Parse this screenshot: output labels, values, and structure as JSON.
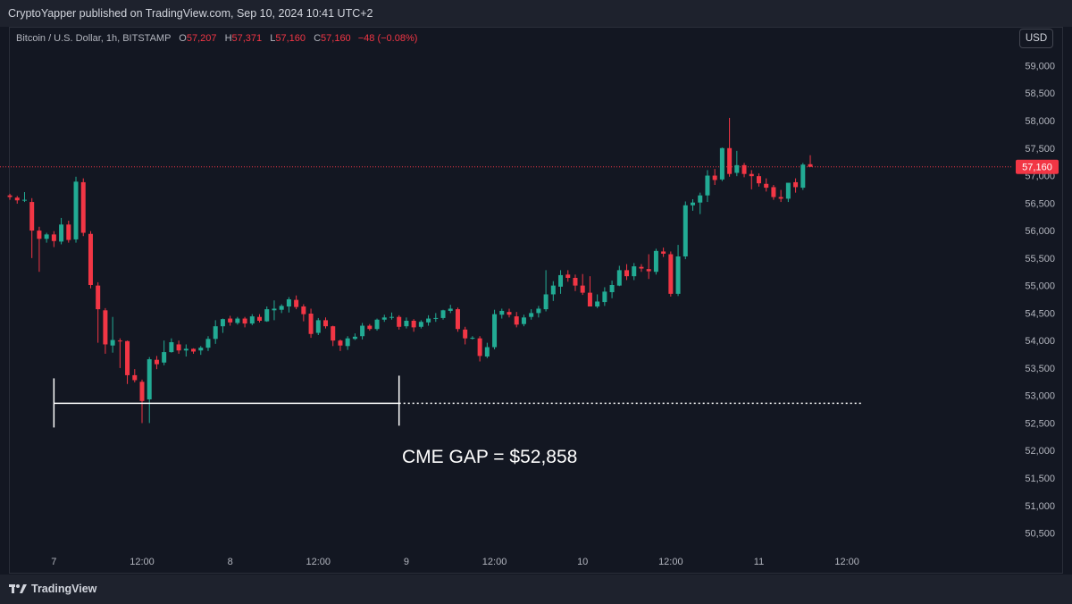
{
  "header": {
    "publisher_line": "CryptoYapper published on TradingView.com, Sep 10, 2024 10:41 UTC+2"
  },
  "legend": {
    "symbol": "Bitcoin / U.S. Dollar, 1h, BITSTAMP",
    "open_label": "O",
    "open_value": "57,207",
    "high_label": "H",
    "high_value": "57,371",
    "low_label": "L",
    "low_value": "57,160",
    "close_label": "C",
    "close_value": "57,160",
    "change": "−48 (−0.08%)"
  },
  "currency_button": "USD",
  "annotation_text": "CME GAP = $52,858",
  "footer": {
    "brand": "TradingView"
  },
  "colors": {
    "up": "#22ab94",
    "down": "#f23645",
    "background": "#131722",
    "price_line": "#f23645"
  },
  "chart_data": {
    "type": "candlestick",
    "ylim": [
      50200,
      59300
    ],
    "y_ticks": [
      "59,000",
      "58,500",
      "58,000",
      "57,500",
      "57,000",
      "56,500",
      "56,000",
      "55,500",
      "55,000",
      "54,500",
      "54,000",
      "53,500",
      "53,000",
      "52,500",
      "52,000",
      "51,500",
      "51,000",
      "50,500"
    ],
    "y_tick_values": [
      59000,
      58500,
      58000,
      57500,
      57000,
      56500,
      56000,
      55500,
      55000,
      54500,
      54000,
      53500,
      53000,
      52500,
      52000,
      51500,
      51000,
      50500
    ],
    "x_ticks": [
      "12:00",
      "7",
      "12:00",
      "8",
      "12:00",
      "9",
      "12:00",
      "10",
      "12:00",
      "11",
      "12:00"
    ],
    "x_tick_hours": [
      -24,
      -12,
      0,
      12,
      24,
      36,
      48,
      60,
      72,
      84,
      96
    ],
    "current_price": {
      "label": "57,160",
      "value": 57160
    },
    "cme_gap": {
      "value": 52858,
      "start_hour": -12,
      "end_hour": 35
    },
    "candles": [
      [
        56640,
        56670,
        56560,
        56610
      ],
      [
        56600,
        56630,
        56490,
        56550
      ],
      [
        56560,
        56700,
        56520,
        56560
      ],
      [
        56520,
        56590,
        55500,
        56000
      ],
      [
        56000,
        56070,
        55250,
        55850
      ],
      [
        55850,
        55960,
        55780,
        55930
      ],
      [
        55930,
        55990,
        55700,
        55810
      ],
      [
        55800,
        56230,
        55750,
        56110
      ],
      [
        56110,
        56180,
        55780,
        55830
      ],
      [
        55840,
        56980,
        55780,
        56890
      ],
      [
        56880,
        56950,
        55900,
        55960
      ],
      [
        55940,
        55990,
        54950,
        55010
      ],
      [
        55000,
        55060,
        53960,
        54570
      ],
      [
        54550,
        54590,
        53760,
        53930
      ],
      [
        53910,
        54430,
        53780,
        54010
      ],
      [
        54000,
        54040,
        53500,
        53990
      ],
      [
        53990,
        54000,
        53210,
        53370
      ],
      [
        53370,
        53480,
        53240,
        53280
      ],
      [
        53250,
        53290,
        52500,
        52900
      ],
      [
        52930,
        53700,
        52500,
        53660
      ],
      [
        53650,
        53720,
        53480,
        53570
      ],
      [
        53600,
        54000,
        53550,
        53790
      ],
      [
        53790,
        54040,
        53780,
        53970
      ],
      [
        53930,
        54000,
        53760,
        53820
      ],
      [
        53820,
        53930,
        53710,
        53850
      ],
      [
        53850,
        53860,
        53760,
        53800
      ],
      [
        53820,
        53900,
        53740,
        53870
      ],
      [
        53870,
        54080,
        53810,
        54030
      ],
      [
        54030,
        54370,
        53940,
        54260
      ],
      [
        54260,
        54400,
        54140,
        54390
      ],
      [
        54400,
        54450,
        54270,
        54330
      ],
      [
        54320,
        54430,
        54290,
        54400
      ],
      [
        54400,
        54430,
        54240,
        54310
      ],
      [
        54310,
        54480,
        54280,
        54440
      ],
      [
        54430,
        54480,
        54330,
        54360
      ],
      [
        54350,
        54620,
        54340,
        54570
      ],
      [
        54550,
        54730,
        54370,
        54580
      ],
      [
        54560,
        54660,
        54500,
        54630
      ],
      [
        54620,
        54790,
        54510,
        54750
      ],
      [
        54740,
        54820,
        54570,
        54610
      ],
      [
        54620,
        54660,
        54350,
        54480
      ],
      [
        54490,
        54580,
        54050,
        54120
      ],
      [
        54140,
        54410,
        54100,
        54370
      ],
      [
        54370,
        54420,
        54220,
        54260
      ],
      [
        54260,
        54270,
        53900,
        54000
      ],
      [
        54000,
        54020,
        53810,
        53910
      ],
      [
        53900,
        54080,
        53830,
        54040
      ],
      [
        54030,
        54130,
        54010,
        54070
      ],
      [
        54080,
        54320,
        54020,
        54270
      ],
      [
        54270,
        54300,
        54180,
        54210
      ],
      [
        54210,
        54400,
        54180,
        54380
      ],
      [
        54380,
        54470,
        54340,
        54420
      ],
      [
        54420,
        54510,
        54380,
        54430
      ],
      [
        54430,
        54460,
        54200,
        54250
      ],
      [
        54260,
        54420,
        54220,
        54360
      ],
      [
        54360,
        54390,
        54160,
        54240
      ],
      [
        54250,
        54370,
        54220,
        54340
      ],
      [
        54330,
        54460,
        54270,
        54400
      ],
      [
        54400,
        54500,
        54340,
        54410
      ],
      [
        54410,
        54560,
        54380,
        54550
      ],
      [
        54540,
        54650,
        54500,
        54580
      ],
      [
        54570,
        54600,
        54160,
        54210
      ],
      [
        54200,
        54250,
        53930,
        54040
      ],
      [
        54040,
        54080,
        54020,
        54050
      ],
      [
        54040,
        54080,
        53620,
        53720
      ],
      [
        53710,
        53960,
        53680,
        53880
      ],
      [
        53880,
        54560,
        53840,
        54480
      ],
      [
        54470,
        54580,
        54400,
        54540
      ],
      [
        54520,
        54580,
        54420,
        54470
      ],
      [
        54440,
        54520,
        54240,
        54290
      ],
      [
        54300,
        54470,
        54260,
        54420
      ],
      [
        54430,
        54570,
        54380,
        54500
      ],
      [
        54500,
        54630,
        54420,
        54580
      ],
      [
        54570,
        55280,
        54530,
        54840
      ],
      [
        54840,
        55080,
        54720,
        55000
      ],
      [
        54980,
        55280,
        54850,
        55190
      ],
      [
        55200,
        55280,
        55070,
        55140
      ],
      [
        55140,
        55200,
        54900,
        55000
      ],
      [
        55000,
        55210,
        54830,
        54870
      ],
      [
        54870,
        55170,
        54670,
        54620
      ],
      [
        54620,
        54840,
        54590,
        54710
      ],
      [
        54700,
        54970,
        54630,
        54890
      ],
      [
        54880,
        55090,
        54770,
        55010
      ],
      [
        55000,
        55360,
        54990,
        55280
      ],
      [
        55280,
        55390,
        55100,
        55170
      ],
      [
        55170,
        55410,
        55100,
        55350
      ],
      [
        55340,
        55390,
        55250,
        55310
      ],
      [
        55300,
        55570,
        55120,
        55260
      ],
      [
        55250,
        55670,
        55200,
        55630
      ],
      [
        55620,
        55690,
        55520,
        55580
      ],
      [
        55570,
        55620,
        54800,
        54850
      ],
      [
        54850,
        55740,
        54810,
        55530
      ],
      [
        55530,
        56530,
        55480,
        56460
      ],
      [
        56460,
        56570,
        56360,
        56510
      ],
      [
        56510,
        56690,
        56300,
        56640
      ],
      [
        56640,
        57100,
        56520,
        57000
      ],
      [
        57000,
        57120,
        56830,
        56920
      ],
      [
        56930,
        57510,
        56900,
        57500
      ],
      [
        57500,
        58050,
        56980,
        57030
      ],
      [
        57050,
        57450,
        56990,
        57190
      ],
      [
        57190,
        57230,
        56970,
        57030
      ],
      [
        57030,
        57100,
        56750,
        56990
      ],
      [
        56990,
        57040,
        56800,
        56860
      ],
      [
        56850,
        56950,
        56710,
        56780
      ],
      [
        56790,
        56830,
        56560,
        56610
      ],
      [
        56610,
        56740,
        56520,
        56580
      ],
      [
        56580,
        56830,
        56520,
        56870
      ],
      [
        56880,
        56950,
        56690,
        56790
      ],
      [
        56780,
        57230,
        56740,
        57200
      ],
      [
        57207,
        57371,
        57160,
        57160
      ]
    ]
  }
}
